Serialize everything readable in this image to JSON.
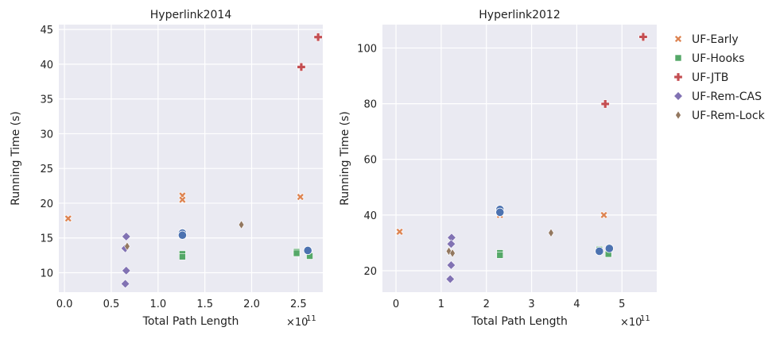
{
  "legend": {
    "placement": "right-outside",
    "entries": [
      {
        "name": "UF-Early",
        "color": "#dd8452",
        "marker": "x"
      },
      {
        "name": "UF-Hooks",
        "color": "#55a868",
        "marker": "square"
      },
      {
        "name": "UF-JTB",
        "color": "#c44e52",
        "marker": "plus"
      },
      {
        "name": "UF-Rem-CAS",
        "color": "#8172b3",
        "marker": "diamond"
      },
      {
        "name": "UF-Rem-Lock",
        "color": "#937860",
        "marker": "thin-diamond"
      }
    ],
    "unlabeled_series": {
      "color": "#4c72b0",
      "marker": "circle"
    }
  },
  "style": {
    "background": "#eaeaf2",
    "grid": "#ffffff"
  },
  "chart_data": [
    {
      "type": "scatter",
      "title": "Hyperlink2014",
      "xlabel": "Total Path Length",
      "ylabel": "Running Time (s)",
      "x_exponent_label": "×10",
      "x_exponent_power": "11",
      "xlim": [
        -0.06,
        2.76
      ],
      "ylim": [
        7.2,
        45.7
      ],
      "xticks": [
        0.0,
        0.5,
        1.0,
        1.5,
        2.0,
        2.5
      ],
      "xtick_labels": [
        "0.0",
        "0.5",
        "1.0",
        "1.5",
        "2.0",
        "2.5"
      ],
      "yticks": [
        10,
        15,
        20,
        25,
        30,
        35,
        40,
        45
      ],
      "ytick_labels": [
        "10",
        "15",
        "20",
        "25",
        "30",
        "35",
        "40",
        "45"
      ],
      "grid": true,
      "series": [
        {
          "name": "UF-Early",
          "points": [
            [
              0.04,
              17.8
            ],
            [
              1.26,
              21.1
            ],
            [
              1.26,
              20.5
            ],
            [
              2.52,
              20.9
            ]
          ]
        },
        {
          "name": "UF-Hooks",
          "points": [
            [
              1.26,
              12.7
            ],
            [
              1.26,
              12.3
            ],
            [
              2.48,
              13.0
            ],
            [
              2.48,
              12.8
            ],
            [
              2.62,
              12.4
            ]
          ]
        },
        {
          "name": "UF-JTB",
          "points": [
            [
              2.53,
              39.6
            ],
            [
              2.71,
              43.9
            ]
          ]
        },
        {
          "name": "UF-Rem-CAS",
          "points": [
            [
              0.66,
              15.2
            ],
            [
              0.65,
              13.5
            ],
            [
              0.66,
              10.3
            ],
            [
              0.65,
              8.4
            ]
          ]
        },
        {
          "name": "UF-Rem-Lock",
          "points": [
            [
              0.67,
              13.8
            ],
            [
              1.89,
              16.9
            ]
          ]
        },
        {
          "name": "",
          "points": [
            [
              1.26,
              15.7
            ],
            [
              1.26,
              15.4
            ],
            [
              2.6,
              13.2
            ]
          ]
        }
      ]
    },
    {
      "type": "scatter",
      "title": "Hyperlink2012",
      "xlabel": "Total Path Length",
      "ylabel": "Running Time (s)",
      "x_exponent_label": "×10",
      "x_exponent_power": "11",
      "xlim": [
        -0.3,
        5.77
      ],
      "ylim": [
        12.3,
        108.4
      ],
      "xticks": [
        0,
        1,
        2,
        3,
        4,
        5
      ],
      "xtick_labels": [
        "0",
        "1",
        "2",
        "3",
        "4",
        "5"
      ],
      "yticks": [
        20,
        40,
        60,
        80,
        100
      ],
      "ytick_labels": [
        "20",
        "40",
        "60",
        "80",
        "100"
      ],
      "grid": true,
      "series": [
        {
          "name": "UF-Early",
          "points": [
            [
              0.08,
              34.0
            ],
            [
              2.3,
              40.0
            ],
            [
              4.6,
              40.0
            ]
          ]
        },
        {
          "name": "UF-Hooks",
          "points": [
            [
              2.3,
              26.4
            ],
            [
              2.3,
              25.6
            ],
            [
              4.5,
              27.6
            ],
            [
              4.7,
              26.0
            ]
          ]
        },
        {
          "name": "UF-JTB",
          "points": [
            [
              4.63,
              79.9
            ],
            [
              5.47,
              104.0
            ]
          ]
        },
        {
          "name": "UF-Rem-CAS",
          "points": [
            [
              1.23,
              31.9
            ],
            [
              1.22,
              29.6
            ],
            [
              1.22,
              22.0
            ],
            [
              1.2,
              17.0
            ]
          ]
        },
        {
          "name": "UF-Rem-Lock",
          "points": [
            [
              1.17,
              27.0
            ],
            [
              1.25,
              26.3
            ],
            [
              3.43,
              33.6
            ]
          ]
        },
        {
          "name": "",
          "points": [
            [
              2.3,
              42.0
            ],
            [
              2.3,
              41.0
            ],
            [
              4.5,
              27.0
            ],
            [
              4.72,
              28.0
            ]
          ]
        }
      ]
    }
  ]
}
